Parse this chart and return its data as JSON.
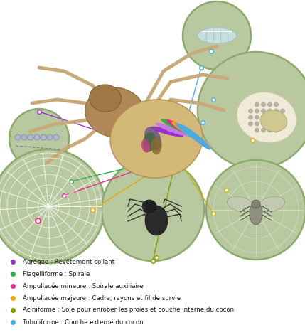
{
  "fig_width": 4.29,
  "fig_height": 4.71,
  "dpi": 100,
  "bg_color": "#ffffff",
  "circle_fill": "#b8c9a0",
  "circle_edge": "#8aab6a",
  "circle_lw": 1.8,
  "legend_items": [
    {
      "color": "#9b30d0",
      "text": "Agrégée : Revêtement collant"
    },
    {
      "color": "#2db34a",
      "text": "Flagelliforme : Spirale"
    },
    {
      "color": "#f0278c",
      "text": "Ampullacée mineure : Spirale auxiliaire"
    },
    {
      "color": "#f0a500",
      "text": "Ampullacée majeure : Cadre, rayons et fil de survie"
    },
    {
      "color": "#8b9900",
      "text": "Aciniforme : Soie pour enrober les proies et couche interne du cocon"
    },
    {
      "color": "#4aabdc",
      "text": "Tubuliforme : Couche externe du cocon"
    }
  ]
}
